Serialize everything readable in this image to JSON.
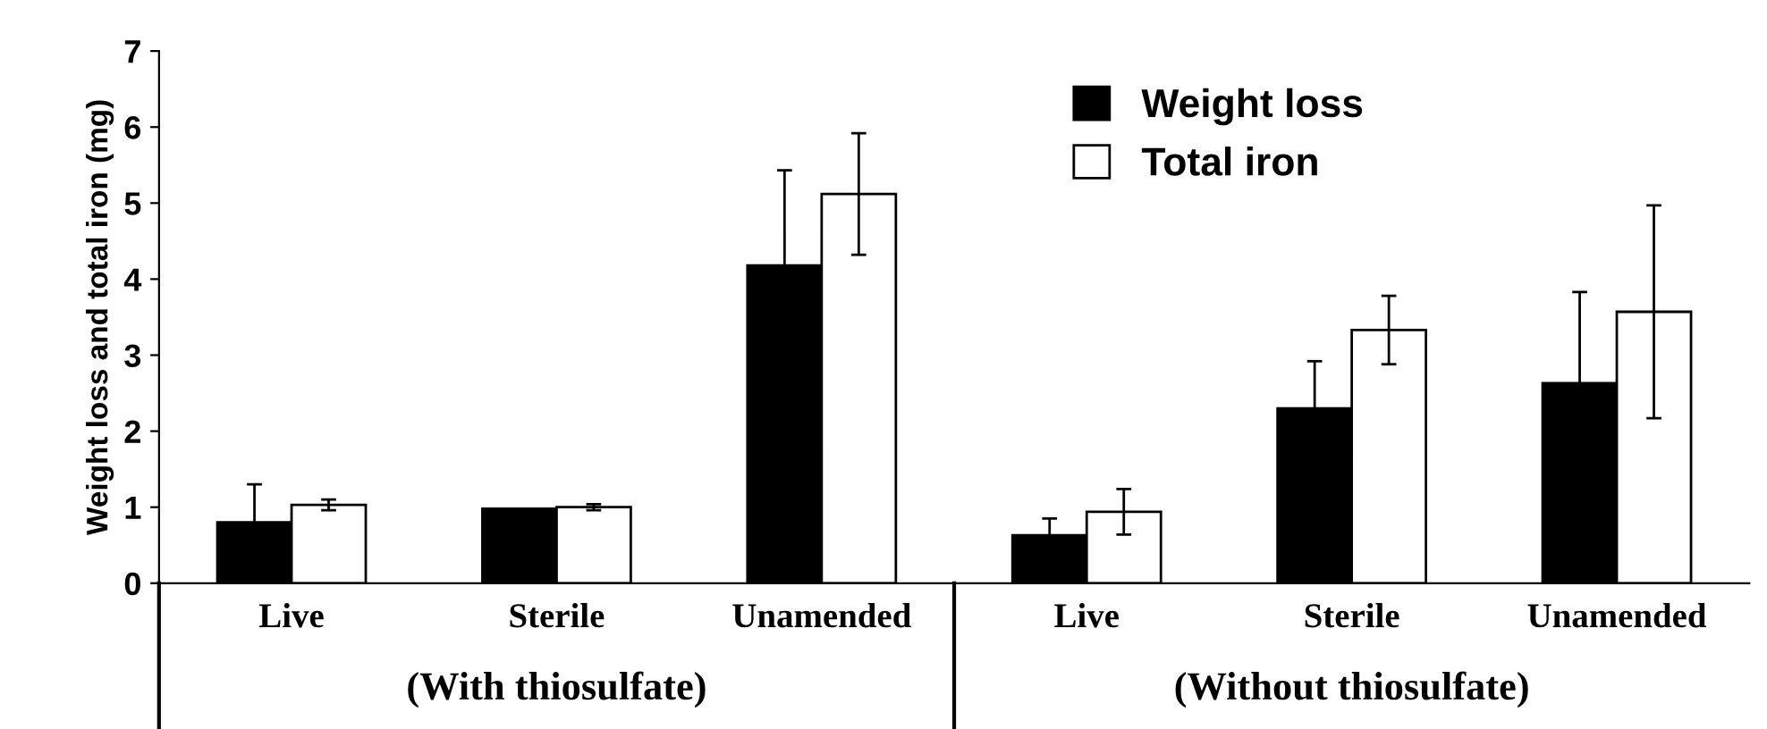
{
  "chart_data": {
    "type": "bar",
    "ylabel": "Weight loss and total iron (mg)",
    "categories": [
      "Live",
      "Sterile",
      "Unamended",
      "Live",
      "Sterile",
      "Unamended"
    ],
    "series": [
      {
        "name": "Weight loss",
        "color": "#000000",
        "values": [
          0.8,
          0.98,
          4.18,
          0.63,
          2.3,
          2.63
        ],
        "errors": [
          0.5,
          null,
          1.25,
          0.22,
          0.62,
          1.2
        ]
      },
      {
        "name": "Total iron",
        "color": "#ffffff",
        "values": [
          1.03,
          1.0,
          5.12,
          0.94,
          3.33,
          3.57
        ],
        "errors": [
          0.07,
          0.04,
          0.8,
          0.3,
          0.45,
          1.4
        ]
      }
    ],
    "ylim": [
      0,
      7
    ],
    "yticks": [
      0,
      1,
      2,
      3,
      4,
      5,
      6,
      7
    ],
    "grid": false,
    "legend": "top right",
    "annotations": [
      "(With thiosulfate)",
      "(Without thiosulfate)"
    ]
  }
}
